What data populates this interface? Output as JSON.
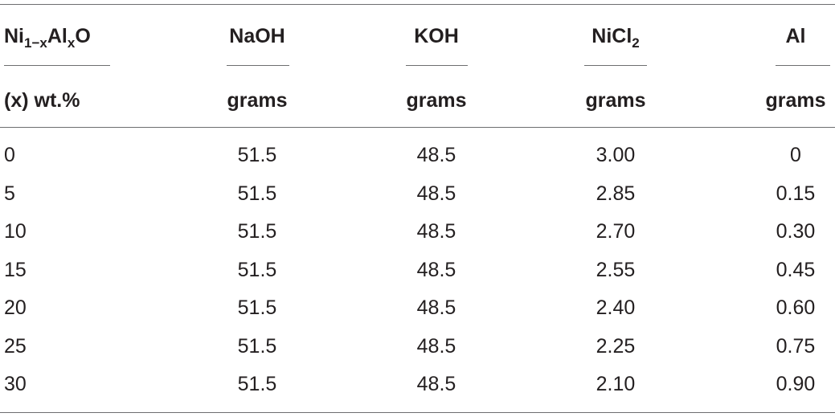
{
  "table": {
    "columns": [
      {
        "name": [
          {
            "text": "Ni"
          },
          {
            "text": "1−x",
            "sub": true
          },
          {
            "text": "Al"
          },
          {
            "text": "x",
            "sub": true
          },
          {
            "text": "O"
          }
        ],
        "unit": "(x) wt.%"
      },
      {
        "name": [
          {
            "text": "NaOH"
          }
        ],
        "unit": "grams"
      },
      {
        "name": [
          {
            "text": "KOH"
          }
        ],
        "unit": "grams"
      },
      {
        "name": [
          {
            "text": "NiCl"
          },
          {
            "text": "2",
            "sub": true
          }
        ],
        "unit": "grams"
      },
      {
        "name": [
          {
            "text": "Al"
          }
        ],
        "unit": "grams"
      }
    ],
    "rows": [
      [
        "0",
        "51.5",
        "48.5",
        "3.00",
        "0"
      ],
      [
        "5",
        "51.5",
        "48.5",
        "2.85",
        "0.15"
      ],
      [
        "10",
        "51.5",
        "48.5",
        "2.70",
        "0.30"
      ],
      [
        "15",
        "51.5",
        "48.5",
        "2.55",
        "0.45"
      ],
      [
        "20",
        "51.5",
        "48.5",
        "2.40",
        "0.60"
      ],
      [
        "25",
        "51.5",
        "48.5",
        "2.25",
        "0.75"
      ],
      [
        "30",
        "51.5",
        "48.5",
        "2.10",
        "0.90"
      ]
    ]
  }
}
